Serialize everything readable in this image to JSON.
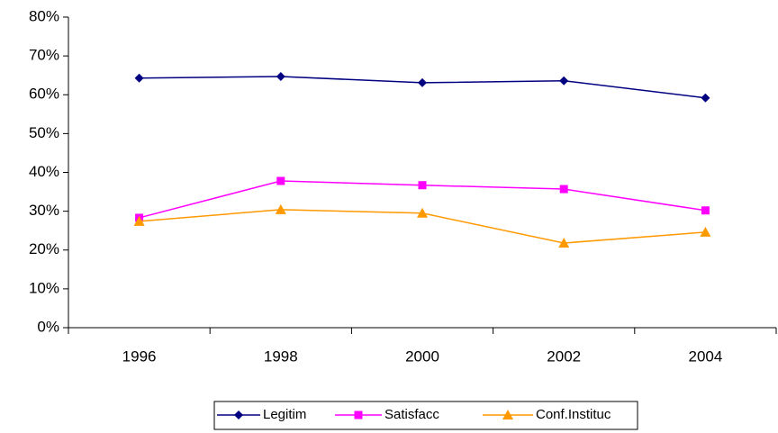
{
  "chart_data": {
    "type": "line",
    "categories": [
      "1996",
      "1998",
      "2000",
      "2002",
      "2004"
    ],
    "series": [
      {
        "name": "Legitim",
        "color": "#000080",
        "marker": "diamond",
        "values": [
          64.3,
          64.7,
          63.1,
          63.6,
          59.2
        ]
      },
      {
        "name": "Satisfacc",
        "color": "#ff00ff",
        "marker": "square",
        "values": [
          28.3,
          37.8,
          36.7,
          35.7,
          30.2
        ]
      },
      {
        "name": "Conf.Instituc",
        "color": "#ff9900",
        "marker": "triangle",
        "values": [
          27.4,
          30.4,
          29.5,
          21.8,
          24.6
        ]
      }
    ],
    "ylim": [
      0,
      80
    ],
    "yticks": [
      {
        "value": 0,
        "label": "0%"
      },
      {
        "value": 10,
        "label": "10%"
      },
      {
        "value": 20,
        "label": "20%"
      },
      {
        "value": 30,
        "label": "30%"
      },
      {
        "value": 40,
        "label": "40%"
      },
      {
        "value": 50,
        "label": "50%"
      },
      {
        "value": 60,
        "label": "60%"
      },
      {
        "value": 70,
        "label": "70%"
      },
      {
        "value": 80,
        "label": "80%"
      }
    ],
    "grid": false,
    "legend": "bottom"
  }
}
